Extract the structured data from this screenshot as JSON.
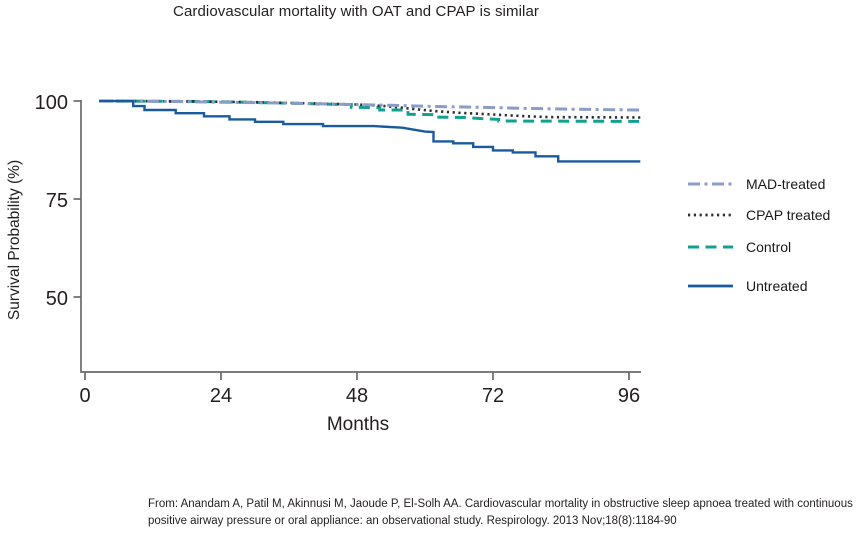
{
  "chart_data": {
    "type": "line",
    "subtype": "kaplan-meier-survival-curves",
    "title": "Cardiovascular mortality with OAT and CPAP is similar",
    "xlabel": "Months",
    "ylabel": "Survival Probability (%)",
    "x_ticks": [
      0,
      24,
      48,
      72,
      96
    ],
    "y_ticks": [
      100,
      75,
      50
    ],
    "xlim": [
      0,
      98
    ],
    "ylim": [
      31,
      101.5
    ],
    "grid": false,
    "legend_position": "right-of-plot",
    "axis_color": "#6a6b6e",
    "text_color": "#231f20",
    "series": [
      {
        "name": "MAD-treated",
        "color": "#8b9cc6",
        "dash": "12 4.5 3 4.5",
        "width": 3,
        "points": [
          [
            2.5,
            100
          ],
          [
            14,
            99.9
          ],
          [
            24,
            99.7
          ],
          [
            34,
            99.5
          ],
          [
            44,
            99.2
          ],
          [
            54,
            98.9
          ],
          [
            62,
            98.6
          ],
          [
            70,
            98.4
          ],
          [
            78,
            98.1
          ],
          [
            86,
            97.9
          ],
          [
            98,
            97.7
          ]
        ]
      },
      {
        "name": "CPAP treated",
        "color": "#2f2f31",
        "dash": "2.2 3.6",
        "width": 2.6,
        "points": [
          [
            2.5,
            100
          ],
          [
            18,
            99.9
          ],
          [
            30,
            99.7
          ],
          [
            40,
            99.4
          ],
          [
            48,
            99.1
          ],
          [
            53,
            98.7
          ],
          [
            56,
            98.3
          ],
          [
            59,
            97.8
          ],
          [
            62,
            97.4
          ],
          [
            66,
            97.0
          ],
          [
            70,
            96.7
          ],
          [
            74,
            96.4
          ],
          [
            78,
            96.1
          ],
          [
            82,
            95.9
          ],
          [
            98,
            95.8
          ]
        ]
      },
      {
        "name": "Control",
        "color": "#12a18f",
        "dash": "11 6.5",
        "width": 3,
        "points": [
          [
            2.5,
            100
          ],
          [
            18,
            99.9
          ],
          [
            28,
            99.7
          ],
          [
            38,
            99.4
          ],
          [
            45,
            99.1
          ],
          [
            47,
            99.1
          ],
          [
            47,
            98.4
          ],
          [
            52,
            98.3
          ],
          [
            52,
            97.7
          ],
          [
            57,
            97.7
          ],
          [
            57,
            96.6
          ],
          [
            62,
            96.5
          ],
          [
            62,
            95.9
          ],
          [
            67,
            95.8
          ],
          [
            70,
            95.5
          ],
          [
            73,
            95.3
          ],
          [
            73,
            94.9
          ],
          [
            98,
            94.8
          ]
        ]
      },
      {
        "name": "Untreated",
        "color": "#1a5a9e",
        "dash": "",
        "width": 2.4,
        "points": [
          [
            2.5,
            100
          ],
          [
            8.5,
            100
          ],
          [
            8.5,
            98.7
          ],
          [
            10.5,
            98.7
          ],
          [
            10.5,
            97.7
          ],
          [
            16,
            97.7
          ],
          [
            16,
            96.9
          ],
          [
            21,
            96.9
          ],
          [
            21,
            96.1
          ],
          [
            25.5,
            96.1
          ],
          [
            25.5,
            95.3
          ],
          [
            30,
            95.3
          ],
          [
            30,
            94.7
          ],
          [
            35,
            94.7
          ],
          [
            35,
            94.1
          ],
          [
            42,
            94.1
          ],
          [
            42,
            93.6
          ],
          [
            51,
            93.6
          ],
          [
            56,
            93.2
          ],
          [
            60,
            92.2
          ],
          [
            61.5,
            92.1
          ],
          [
            61.5,
            89.7
          ],
          [
            65,
            89.7
          ],
          [
            65,
            89.2
          ],
          [
            68.5,
            89.2
          ],
          [
            68.5,
            88.3
          ],
          [
            72,
            88.3
          ],
          [
            72,
            87.4
          ],
          [
            75.5,
            87.4
          ],
          [
            75.5,
            86.9
          ],
          [
            79.5,
            86.9
          ],
          [
            79.5,
            85.9
          ],
          [
            83.5,
            85.9
          ],
          [
            83.5,
            84.6
          ],
          [
            98,
            84.6
          ]
        ]
      }
    ]
  },
  "citation": {
    "line1": "From: Anandam A, Patil M, Akinnusi M, Jaoude P, El-Solh AA. Cardiovascular mortality in obstructive sleep apnoea treated with continuous",
    "line2": "positive airway pressure or oral appliance: an observational study. Respirology. 2013 Nov;18(8):1184-90"
  }
}
